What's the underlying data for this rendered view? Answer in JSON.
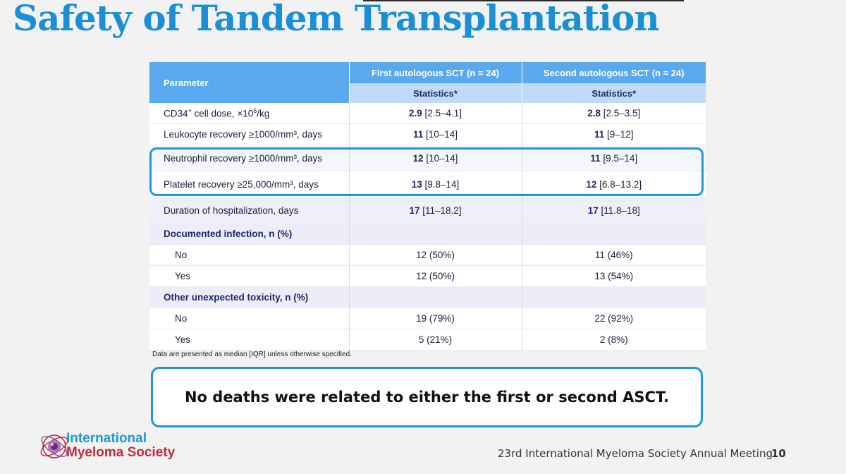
{
  "slide": {
    "title": "Safety of Tandem Transplantation",
    "footnote": "Data are presented as median [IQR] unless otherwise specified.",
    "callout": "No deaths were related to either the first or second ASCT.",
    "footer": "23rd International Myeloma Society Annual Meeting",
    "page_number": "10"
  },
  "logo": {
    "line1": "International",
    "line2": "Myeloma Society"
  },
  "table": {
    "header": {
      "parameter": "Parameter",
      "col_a": "First autologous SCT (n = 24)",
      "col_b": "Second autologous SCT (n = 24)",
      "sub_a": "Statistics*",
      "sub_b": "Statistics*"
    },
    "rows": [
      {
        "param_pre": "CD34",
        "param_sup": "+",
        "param_mid": " cell dose, ×10",
        "param_sup2": "6",
        "param_post": "/kg",
        "a_num": "2.9",
        "a_rest": "[2.5–4.1]",
        "b_num": "2.8",
        "b_rest": "[2.5–3.5]"
      },
      {
        "param": "Leukocyte recovery ≥1000/mm³, days",
        "a_num": "11",
        "a_rest": "[10–14]",
        "b_num": "11",
        "b_rest": "[9–12]"
      },
      {
        "param": "Neutrophil recovery ≥1000/mm³, days",
        "a_num": "12",
        "a_rest": "[10–14]",
        "b_num": "11",
        "b_rest": "[9.5–14]"
      },
      {
        "param": "Platelet recovery ≥25,000/mm³, days",
        "a_num": "13",
        "a_rest": "[9.8–14]",
        "b_num": "12",
        "b_rest": "[6.8–13.2]"
      },
      {
        "param": "Duration of hospitalization, days",
        "a_num": "17",
        "a_rest": "[11–18.2]",
        "b_num": "17",
        "b_rest": "[11.8–18]"
      },
      {
        "param": "Documented infection, n (%)"
      },
      {
        "param": "No",
        "a": "12 (50%)",
        "b": "11 (46%)"
      },
      {
        "param": "Yes",
        "a": "12 (50%)",
        "b": "13 (54%)"
      },
      {
        "param": "Other unexpected toxicity, n (%)"
      },
      {
        "param": "No",
        "a": "19 (79%)",
        "b": "22 (92%)"
      },
      {
        "param": "Yes",
        "a": "5 (21%)",
        "b": "2 (8%)"
      }
    ]
  }
}
